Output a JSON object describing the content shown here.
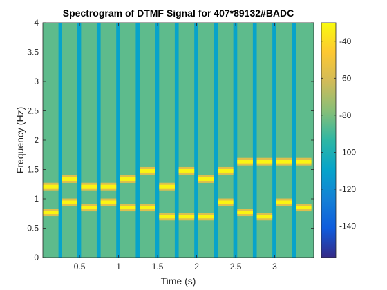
{
  "chart_data": {
    "type": "heatmap",
    "title": "Spectrogram of DTMF Signal for 407*89132#BADC",
    "xlabel": "Time (s)",
    "ylabel": "Frequency (Hz)",
    "xlim": [
      0.03,
      3.5
    ],
    "ylim": [
      0,
      4
    ],
    "x_ticks": [
      0.5,
      1,
      1.5,
      2,
      2.5,
      3
    ],
    "x_tick_labels": [
      "0.5",
      "1",
      "1.5",
      "2",
      "2.5",
      "3"
    ],
    "y_ticks": [
      0,
      0.5,
      1,
      1.5,
      2,
      2.5,
      3,
      3.5,
      4
    ],
    "y_tick_labels": [
      "0",
      "0.5",
      "1",
      "1.5",
      "2",
      "2.5",
      "3",
      "3.5",
      "4"
    ],
    "colorbar": {
      "range": [
        -157,
        -30
      ],
      "ticks": [
        -140,
        -120,
        -100,
        -80,
        -60,
        -40
      ],
      "tick_labels": [
        "-140",
        "-120",
        "-100",
        "-80",
        "-60",
        "-40"
      ],
      "colormap": "parula"
    },
    "background_level_db": -85,
    "gap_level_db": -110,
    "tone_level_db": -32,
    "segments": [
      {
        "key": "4",
        "t_start": 0.03,
        "t_end": 0.23,
        "low_khz": 0.77,
        "high_khz": 1.209
      },
      {
        "key": "0",
        "t_start": 0.27,
        "t_end": 0.47,
        "low_khz": 0.941,
        "high_khz": 1.336
      },
      {
        "key": "7",
        "t_start": 0.52,
        "t_end": 0.72,
        "low_khz": 0.852,
        "high_khz": 1.209
      },
      {
        "key": "*",
        "t_start": 0.77,
        "t_end": 0.97,
        "low_khz": 0.941,
        "high_khz": 1.209
      },
      {
        "key": "8",
        "t_start": 1.02,
        "t_end": 1.22,
        "low_khz": 0.852,
        "high_khz": 1.336
      },
      {
        "key": "9",
        "t_start": 1.27,
        "t_end": 1.47,
        "low_khz": 0.852,
        "high_khz": 1.477
      },
      {
        "key": "1",
        "t_start": 1.52,
        "t_end": 1.72,
        "low_khz": 0.697,
        "high_khz": 1.209
      },
      {
        "key": "3",
        "t_start": 1.77,
        "t_end": 1.97,
        "low_khz": 0.697,
        "high_khz": 1.477
      },
      {
        "key": "2",
        "t_start": 2.02,
        "t_end": 2.22,
        "low_khz": 0.697,
        "high_khz": 1.336
      },
      {
        "key": "#",
        "t_start": 2.27,
        "t_end": 2.47,
        "low_khz": 0.941,
        "high_khz": 1.477
      },
      {
        "key": "B",
        "t_start": 2.52,
        "t_end": 2.72,
        "low_khz": 0.77,
        "high_khz": 1.633
      },
      {
        "key": "A",
        "t_start": 2.77,
        "t_end": 2.97,
        "low_khz": 0.697,
        "high_khz": 1.633
      },
      {
        "key": "D",
        "t_start": 3.02,
        "t_end": 3.22,
        "low_khz": 0.941,
        "high_khz": 1.633
      },
      {
        "key": "C",
        "t_start": 3.27,
        "t_end": 3.47,
        "low_khz": 0.852,
        "high_khz": 1.633
      }
    ],
    "grid": false,
    "legend": "colorbar-right"
  }
}
